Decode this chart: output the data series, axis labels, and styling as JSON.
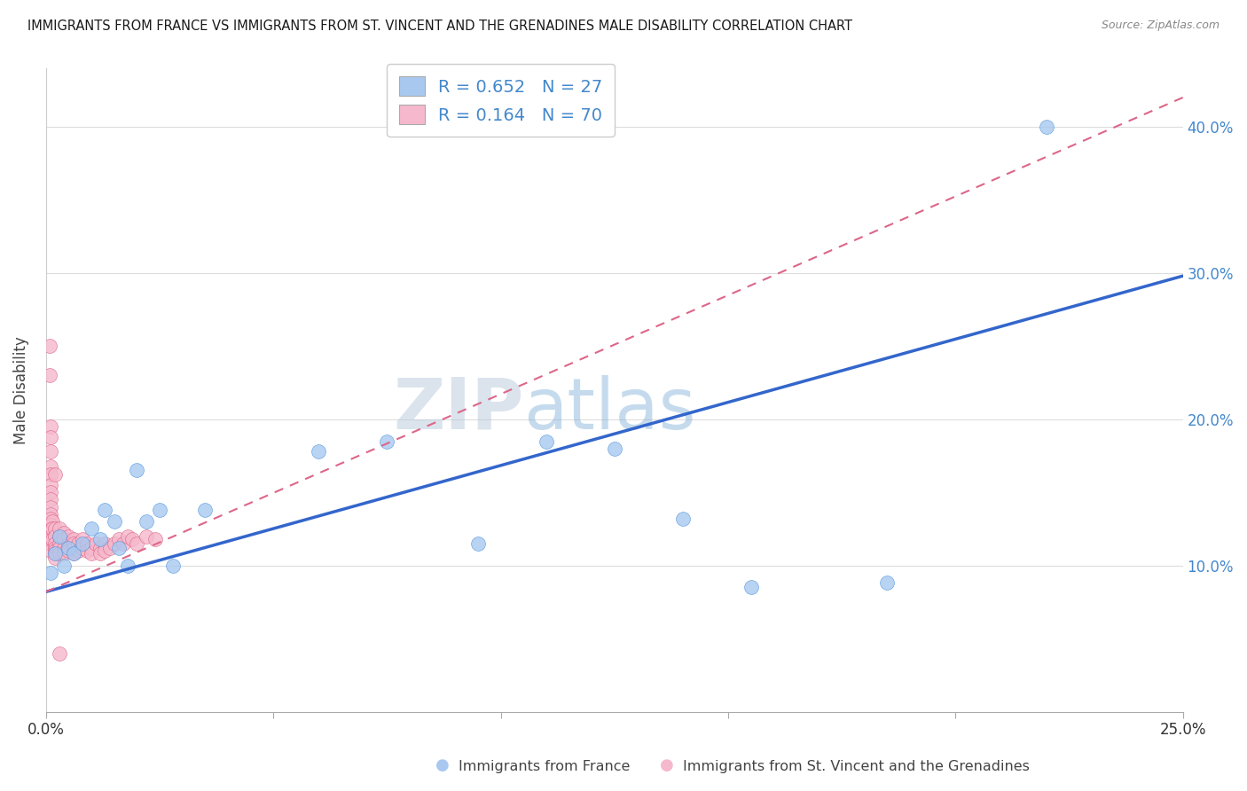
{
  "title": "IMMIGRANTS FROM FRANCE VS IMMIGRANTS FROM ST. VINCENT AND THE GRENADINES MALE DISABILITY CORRELATION CHART",
  "source": "Source: ZipAtlas.com",
  "ylabel": "Male Disability",
  "xlabel_france": "Immigrants from France",
  "xlabel_stvincent": "Immigrants from St. Vincent and the Grenadines",
  "xlim": [
    0.0,
    0.25
  ],
  "ylim": [
    0.0,
    0.44
  ],
  "yticks": [
    0.1,
    0.2,
    0.3,
    0.4
  ],
  "xticks": [
    0.0,
    0.05,
    0.1,
    0.15,
    0.2,
    0.25
  ],
  "france_color": "#a8c8f0",
  "france_edge_color": "#5599dd",
  "stvincent_color": "#f5b8cc",
  "stvincent_edge_color": "#dd6688",
  "france_line_color": "#3366cc",
  "stvincent_line_color": "#dd7799",
  "right_tick_color": "#4488cc",
  "legend_france_r": "0.652",
  "legend_france_n": "27",
  "legend_stvincent_r": "0.164",
  "legend_stvincent_n": "70",
  "watermark": "ZIPatlas",
  "france_line_x0": 0.0,
  "france_line_y0": 0.082,
  "france_line_x1": 0.25,
  "france_line_y1": 0.298,
  "sv_line_x0": 0.0,
  "sv_line_y0": 0.082,
  "sv_line_x1": 0.25,
  "sv_line_y1": 0.42,
  "france_x": [
    0.001,
    0.002,
    0.003,
    0.004,
    0.005,
    0.006,
    0.008,
    0.01,
    0.012,
    0.013,
    0.015,
    0.016,
    0.018,
    0.02,
    0.022,
    0.025,
    0.028,
    0.035,
    0.06,
    0.075,
    0.095,
    0.11,
    0.125,
    0.14,
    0.155,
    0.185,
    0.22
  ],
  "france_y": [
    0.095,
    0.108,
    0.12,
    0.1,
    0.112,
    0.108,
    0.115,
    0.125,
    0.118,
    0.138,
    0.13,
    0.112,
    0.1,
    0.165,
    0.13,
    0.138,
    0.1,
    0.138,
    0.178,
    0.185,
    0.115,
    0.185,
    0.18,
    0.132,
    0.085,
    0.088,
    0.4
  ],
  "sv_x": [
    0.0008,
    0.0008,
    0.001,
    0.001,
    0.001,
    0.001,
    0.001,
    0.001,
    0.001,
    0.001,
    0.001,
    0.001,
    0.001,
    0.001,
    0.001,
    0.001,
    0.001,
    0.001,
    0.001,
    0.001,
    0.0015,
    0.0015,
    0.0015,
    0.002,
    0.002,
    0.002,
    0.002,
    0.002,
    0.002,
    0.002,
    0.003,
    0.003,
    0.003,
    0.003,
    0.003,
    0.004,
    0.004,
    0.004,
    0.004,
    0.005,
    0.005,
    0.005,
    0.006,
    0.006,
    0.006,
    0.006,
    0.007,
    0.007,
    0.008,
    0.008,
    0.009,
    0.009,
    0.01,
    0.01,
    0.011,
    0.012,
    0.012,
    0.013,
    0.013,
    0.014,
    0.015,
    0.016,
    0.017,
    0.018,
    0.019,
    0.02,
    0.022,
    0.024,
    0.003,
    0.002
  ],
  "sv_y": [
    0.25,
    0.23,
    0.195,
    0.188,
    0.178,
    0.168,
    0.162,
    0.155,
    0.15,
    0.145,
    0.14,
    0.135,
    0.132,
    0.128,
    0.125,
    0.122,
    0.12,
    0.118,
    0.115,
    0.11,
    0.13,
    0.125,
    0.118,
    0.125,
    0.12,
    0.115,
    0.112,
    0.11,
    0.108,
    0.105,
    0.125,
    0.12,
    0.115,
    0.112,
    0.108,
    0.122,
    0.118,
    0.112,
    0.108,
    0.12,
    0.115,
    0.11,
    0.118,
    0.115,
    0.112,
    0.108,
    0.115,
    0.11,
    0.118,
    0.112,
    0.115,
    0.11,
    0.112,
    0.108,
    0.115,
    0.112,
    0.108,
    0.115,
    0.11,
    0.112,
    0.115,
    0.118,
    0.115,
    0.12,
    0.118,
    0.115,
    0.12,
    0.118,
    0.04,
    0.162
  ]
}
